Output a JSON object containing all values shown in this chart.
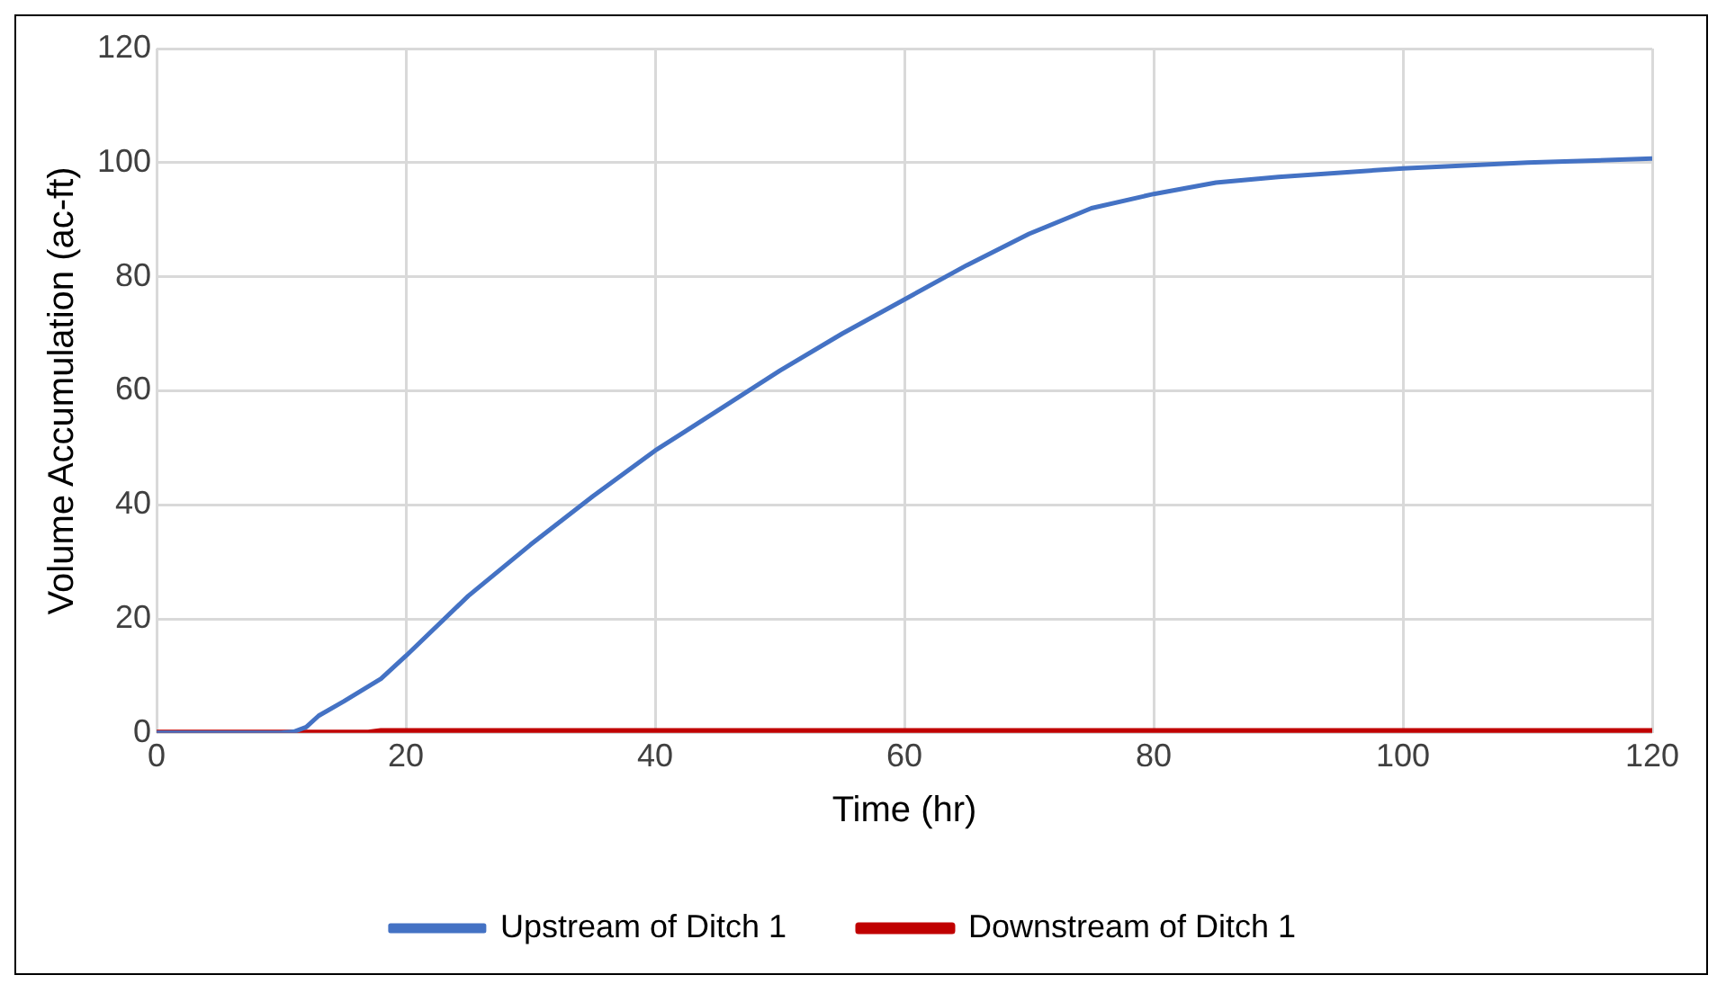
{
  "chart_data": {
    "type": "line",
    "xlabel": "Time (hr)",
    "ylabel": "Volume Accumulation (ac-ft)",
    "xlim": [
      0,
      120
    ],
    "xticks": [
      0,
      20,
      40,
      60,
      80,
      100,
      120
    ],
    "ylim": [
      0,
      120
    ],
    "yticks": [
      0,
      20,
      40,
      60,
      80,
      100,
      120
    ],
    "grid": true,
    "legend": "bottom",
    "marker": "none",
    "line_style": "solid",
    "series": [
      {
        "name": "Upstream of Ditch 1",
        "color": "#4472c4",
        "x": [
          0,
          5,
          10,
          11,
          12,
          13,
          15,
          18,
          20,
          25,
          30,
          35,
          40,
          45,
          50,
          55,
          60,
          65,
          70,
          75,
          80,
          85,
          90,
          100,
          110,
          120
        ],
        "values": [
          0,
          0,
          0,
          0.2,
          1,
          3,
          5.5,
          9.5,
          13.5,
          24,
          33,
          41.5,
          49.5,
          56.5,
          63.5,
          70,
          76,
          82,
          87.5,
          92,
          94.5,
          96.5,
          97.5,
          99,
          100,
          100.7
        ]
      },
      {
        "name": "Downstream of Ditch 1",
        "color": "#c00000",
        "x": [
          0,
          17,
          18,
          60,
          120
        ],
        "values": [
          0,
          0,
          0.3,
          0.3,
          0.3
        ]
      }
    ]
  }
}
